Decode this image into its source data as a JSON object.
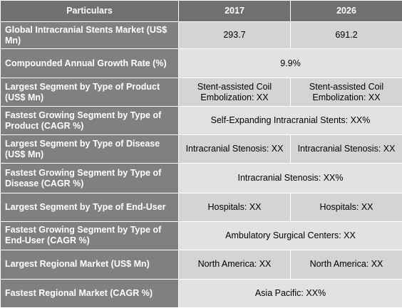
{
  "header": {
    "particulars": "Particulars",
    "year1": "2017",
    "year2": "2026"
  },
  "rows": [
    {
      "label": "Global Intracranial Stents Market (US$ Mn)",
      "v2017": "293.7",
      "v2026": "691.2"
    },
    {
      "label": "Compounded Annual Growth Rate (%)",
      "value": "9.9%"
    },
    {
      "label": "Largest Segment by Type of Product (US$ Mn)",
      "v2017": "Stent-assisted Coil Embolization: XX",
      "v2026": "Stent-assisted Coil Embolization: XX"
    },
    {
      "label": "Fastest Growing Segment by Type of Product (CAGR %)",
      "value": "Self-Expanding Intracranial Stents: XX%"
    },
    {
      "label": "Largest Segment by Type of Disease (US$ Mn)",
      "v2017": "Intracranial Stenosis: XX",
      "v2026": "Intracranial Stenosis: XX"
    },
    {
      "label": "Fastest Growing Segment by Type of Disease (CAGR %)",
      "value": "Intracranial Stenosis: XX%"
    },
    {
      "label": "Largest Segment by Type of End-User",
      "v2017": "Hospitals: XX",
      "v2026": "Hospitals: XX"
    },
    {
      "label": "Fastest Growing Segment by Type of End-User (CAGR %)",
      "value": "Ambulatory Surgical Centers: XX"
    },
    {
      "label": "Largest Regional Market (US$ Mn)",
      "v2017": "North America: XX",
      "v2026": "North America: XX"
    },
    {
      "label": "Fastest Regional Market (CAGR %)",
      "value": "Asia Pacific: XX%"
    }
  ]
}
